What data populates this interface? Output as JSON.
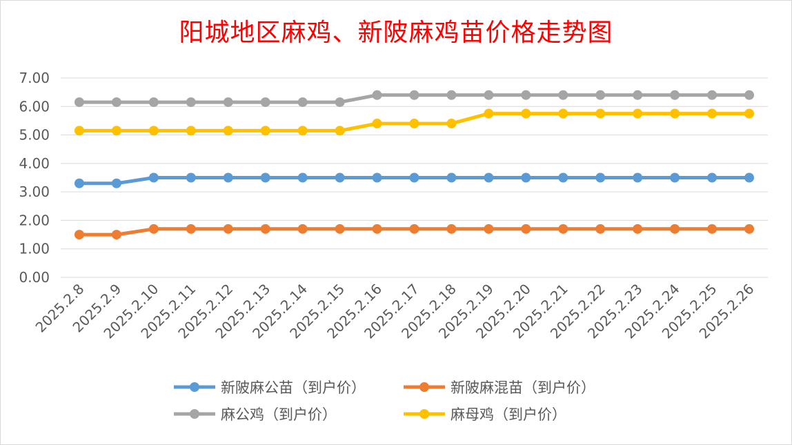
{
  "chart_data": {
    "type": "line",
    "title": "阳城地区麻鸡、新陂麻鸡苗价格走势图",
    "xlabel": "",
    "ylabel": "",
    "ylim": [
      0,
      7
    ],
    "y_ticks": [
      "0.00",
      "1.00",
      "2.00",
      "3.00",
      "4.00",
      "5.00",
      "6.00",
      "7.00"
    ],
    "grid": true,
    "legend_position": "bottom",
    "categories": [
      "2025.2.8",
      "2025.2.9",
      "2025.2.10",
      "2025.2.11",
      "2025.2.12",
      "2025.2.13",
      "2025.2.14",
      "2025.2.15",
      "2025.2.16",
      "2025.2.17",
      "2025.2.18",
      "2025.2.19",
      "2025.2.20",
      "2025.2.21",
      "2025.2.22",
      "2025.2.23",
      "2025.2.24",
      "2025.2.25",
      "2025.2.26"
    ],
    "series": [
      {
        "name": "新陂麻公苗（到户价）",
        "color": "#5b9bd5",
        "values": [
          3.3,
          3.3,
          3.5,
          3.5,
          3.5,
          3.5,
          3.5,
          3.5,
          3.5,
          3.5,
          3.5,
          3.5,
          3.5,
          3.5,
          3.5,
          3.5,
          3.5,
          3.5,
          3.5
        ]
      },
      {
        "name": "新陂麻混苗（到户价）",
        "color": "#ed7d31",
        "values": [
          1.5,
          1.5,
          1.7,
          1.7,
          1.7,
          1.7,
          1.7,
          1.7,
          1.7,
          1.7,
          1.7,
          1.7,
          1.7,
          1.7,
          1.7,
          1.7,
          1.7,
          1.7,
          1.7
        ]
      },
      {
        "name": "麻公鸡（到户价）",
        "color": "#a5a5a5",
        "values": [
          6.15,
          6.15,
          6.15,
          6.15,
          6.15,
          6.15,
          6.15,
          6.15,
          6.4,
          6.4,
          6.4,
          6.4,
          6.4,
          6.4,
          6.4,
          6.4,
          6.4,
          6.4,
          6.4
        ]
      },
      {
        "name": "麻母鸡（到户价）",
        "color": "#ffc000",
        "values": [
          5.15,
          5.15,
          5.15,
          5.15,
          5.15,
          5.15,
          5.15,
          5.15,
          5.4,
          5.4,
          5.4,
          5.75,
          5.75,
          5.75,
          5.75,
          5.75,
          5.75,
          5.75,
          5.75
        ]
      }
    ]
  },
  "colors": {
    "grid": "#d9d9d9",
    "axis_text": "#595959",
    "title": "#ff0000"
  }
}
